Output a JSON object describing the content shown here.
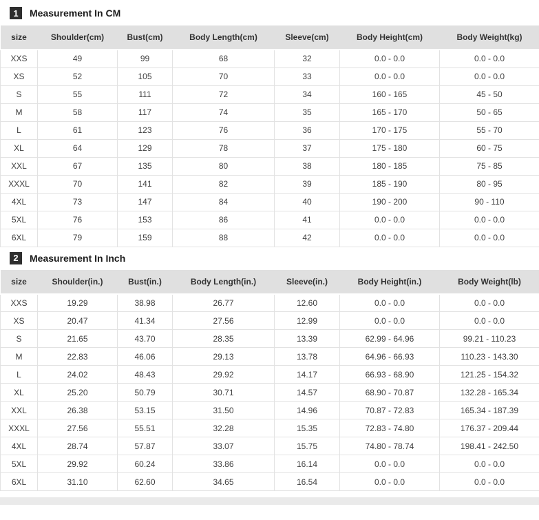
{
  "sections": [
    {
      "badge": "1",
      "title": "Measurement In CM",
      "columns": [
        "size",
        "Shoulder(cm)",
        "Bust(cm)",
        "Body Length(cm)",
        "Sleeve(cm)",
        "Body Height(cm)",
        "Body Weight(kg)"
      ],
      "rows": [
        [
          "XXS",
          "49",
          "99",
          "68",
          "32",
          "0.0 - 0.0",
          "0.0 - 0.0"
        ],
        [
          "XS",
          "52",
          "105",
          "70",
          "33",
          "0.0 - 0.0",
          "0.0 - 0.0"
        ],
        [
          "S",
          "55",
          "111",
          "72",
          "34",
          "160 - 165",
          "45 - 50"
        ],
        [
          "M",
          "58",
          "117",
          "74",
          "35",
          "165 - 170",
          "50 - 65"
        ],
        [
          "L",
          "61",
          "123",
          "76",
          "36",
          "170 - 175",
          "55 - 70"
        ],
        [
          "XL",
          "64",
          "129",
          "78",
          "37",
          "175 - 180",
          "60 - 75"
        ],
        [
          "XXL",
          "67",
          "135",
          "80",
          "38",
          "180 - 185",
          "75 - 85"
        ],
        [
          "XXXL",
          "70",
          "141",
          "82",
          "39",
          "185 - 190",
          "80 - 95"
        ],
        [
          "4XL",
          "73",
          "147",
          "84",
          "40",
          "190 - 200",
          "90 - 110"
        ],
        [
          "5XL",
          "76",
          "153",
          "86",
          "41",
          "0.0 - 0.0",
          "0.0 - 0.0"
        ],
        [
          "6XL",
          "79",
          "159",
          "88",
          "42",
          "0.0 - 0.0",
          "0.0 - 0.0"
        ]
      ]
    },
    {
      "badge": "2",
      "title": "Measurement In Inch",
      "columns": [
        "size",
        "Shoulder(in.)",
        "Bust(in.)",
        "Body Length(in.)",
        "Sleeve(in.)",
        "Body Height(in.)",
        "Body Weight(lb)"
      ],
      "rows": [
        [
          "XXS",
          "19.29",
          "38.98",
          "26.77",
          "12.60",
          "0.0 - 0.0",
          "0.0 - 0.0"
        ],
        [
          "XS",
          "20.47",
          "41.34",
          "27.56",
          "12.99",
          "0.0 - 0.0",
          "0.0 - 0.0"
        ],
        [
          "S",
          "21.65",
          "43.70",
          "28.35",
          "13.39",
          "62.99 - 64.96",
          "99.21 - 110.23"
        ],
        [
          "M",
          "22.83",
          "46.06",
          "29.13",
          "13.78",
          "64.96 - 66.93",
          "110.23 - 143.30"
        ],
        [
          "L",
          "24.02",
          "48.43",
          "29.92",
          "14.17",
          "66.93 - 68.90",
          "121.25 - 154.32"
        ],
        [
          "XL",
          "25.20",
          "50.79",
          "30.71",
          "14.57",
          "68.90 - 70.87",
          "132.28 - 165.34"
        ],
        [
          "XXL",
          "26.38",
          "53.15",
          "31.50",
          "14.96",
          "70.87 - 72.83",
          "165.34 - 187.39"
        ],
        [
          "XXXL",
          "27.56",
          "55.51",
          "32.28",
          "15.35",
          "72.83 - 74.80",
          "176.37 - 209.44"
        ],
        [
          "4XL",
          "28.74",
          "57.87",
          "33.07",
          "15.75",
          "74.80 - 78.74",
          "198.41 - 242.50"
        ],
        [
          "5XL",
          "29.92",
          "60.24",
          "33.86",
          "16.14",
          "0.0 - 0.0",
          "0.0 - 0.0"
        ],
        [
          "6XL",
          "31.10",
          "62.60",
          "34.65",
          "16.54",
          "0.0 - 0.0",
          "0.0 - 0.0"
        ]
      ]
    }
  ],
  "colors": {
    "header_bg": "#e0e0e0",
    "badge_bg": "#2e2e2e",
    "border": "#e2e2e2",
    "cell_text": "#3f3f3f",
    "title_text": "#1b1b1b"
  }
}
